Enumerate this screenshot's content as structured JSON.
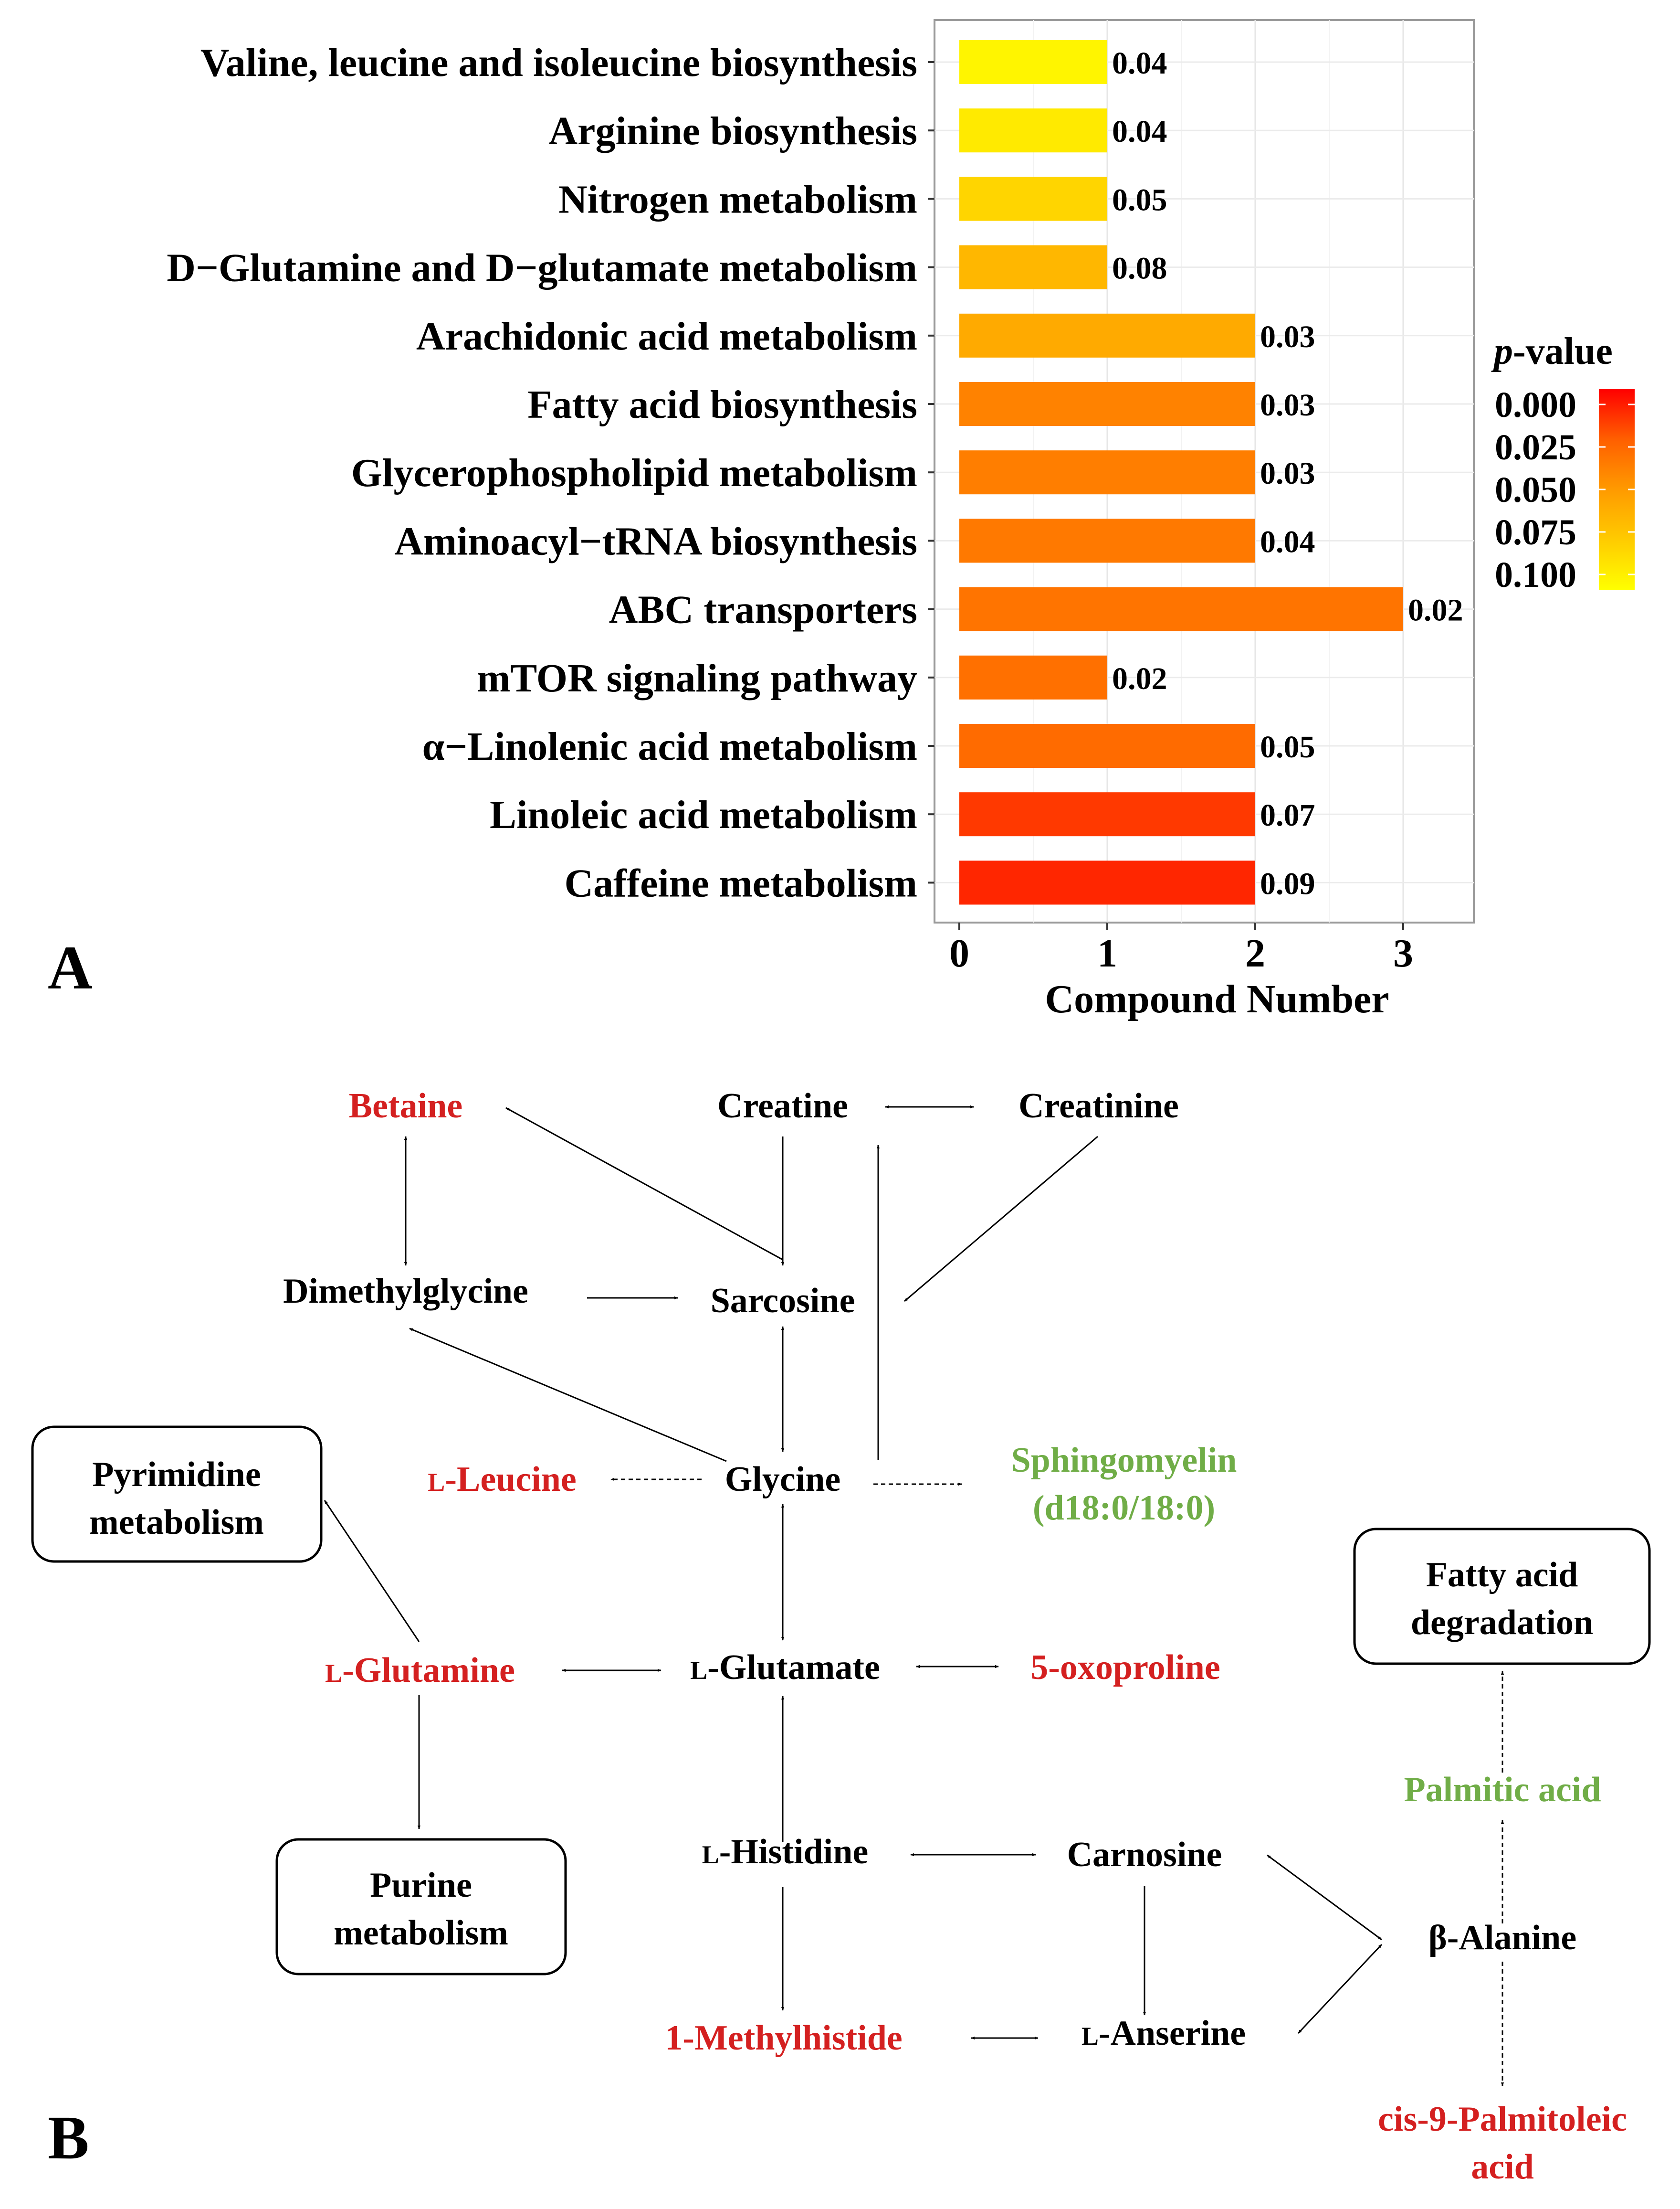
{
  "chart_data": {
    "type": "bar",
    "orientation": "horizontal",
    "panel_label": "A",
    "categories": [
      "Valine, leucine and isoleucine biosynthesis",
      "Arginine biosynthesis",
      "Nitrogen metabolism",
      "D−Glutamine and D−glutamate metabolism",
      "Arachidonic acid metabolism",
      "Fatty acid biosynthesis",
      "Glycerophospholipid metabolism",
      "Aminoacyl−tRNA biosynthesis",
      "ABC transporters",
      "mTOR signaling pathway",
      "α−Linolenic acid metabolism",
      "Linoleic acid metabolism",
      "Caffeine metabolism"
    ],
    "values": [
      1,
      1,
      1,
      1,
      2,
      2,
      2,
      2,
      3,
      1,
      2,
      2,
      2
    ],
    "p_values": [
      0.095,
      0.09,
      0.08,
      0.065,
      0.058,
      0.04,
      0.038,
      0.036,
      0.034,
      0.032,
      0.03,
      0.015,
      0.01
    ],
    "data_labels": [
      "0.04",
      "0.04",
      "0.05",
      "0.08",
      "0.03",
      "0.03",
      "0.03",
      "0.04",
      "0.02",
      "0.02",
      "0.05",
      "0.07",
      "0.09"
    ],
    "xlabel": "Compound Number",
    "xlim": [
      0,
      3.4
    ],
    "xticks": [
      "0",
      "1",
      "2",
      "3"
    ],
    "grid": true,
    "legend": {
      "title_italic": "p",
      "title_rest": "-value",
      "position": "right",
      "ticks": [
        "0.000",
        "0.025",
        "0.050",
        "0.075",
        "0.100"
      ],
      "colors": [
        "#FF0000",
        "#FF5F00",
        "#FF9A00",
        "#FFCB00",
        "#FFFF00"
      ]
    }
  },
  "pathway": {
    "panel_label": "B",
    "colors": {
      "up": "#D42020",
      "down": "#70AD47",
      "neutral": "#000000"
    },
    "nodes": {
      "betaine": "Betaine",
      "creatine": "Creatine",
      "creatinine": "Creatinine",
      "dimethylglycine": "Dimethylglycine",
      "sarcosine": "Sarcosine",
      "pyrimidine_1": "Pyrimidine",
      "pyrimidine_2": "metabolism",
      "leucine_prefix": "L",
      "leucine": "-Leucine",
      "glycine": "Glycine",
      "sphingo_1": "Sphingomyelin",
      "sphingo_2": "(d18:0/18:0)",
      "fatty_1": "Fatty acid",
      "fatty_2": "degradation",
      "glutamine_prefix": "L",
      "glutamine": "-Glutamine",
      "glutamate_prefix": "L",
      "glutamate": "-Glutamate",
      "oxoproline": "5-oxoproline",
      "palmitic": "Palmitic acid",
      "purine_1": "Purine",
      "purine_2": "metabolism",
      "histidine_prefix": "L",
      "histidine": "-Histidine",
      "carnosine": "Carnosine",
      "alanine": "β-Alanine",
      "methylhistide": "1-Methylhistide",
      "anserine_prefix": "L",
      "anserine": "-Anserine",
      "palmitoleic_1": "cis-9-Palmitoleic",
      "palmitoleic_2": "acid"
    }
  }
}
